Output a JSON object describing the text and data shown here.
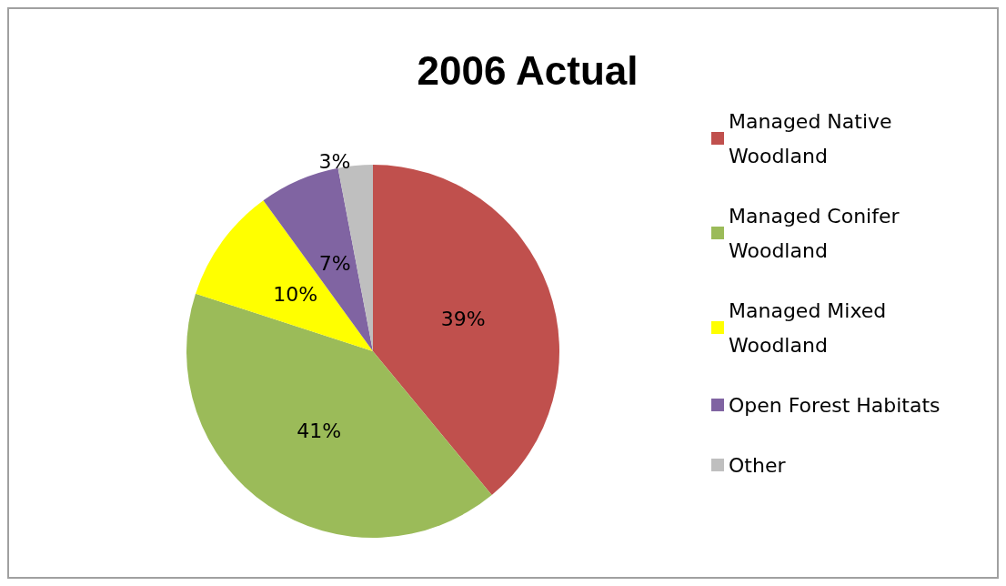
{
  "chart_data": {
    "type": "pie",
    "title": "2006 Actual",
    "categories": [
      "Managed Native Woodland",
      "Managed Conifer Woodland",
      "Managed Mixed Woodland",
      "Open Forest Habitats",
      "Other"
    ],
    "values": [
      39,
      41,
      10,
      7,
      3
    ],
    "colors": [
      "#c0504d",
      "#9bbb59",
      "#ffff00",
      "#8064a2",
      "#bfbfbf"
    ],
    "value_labels": [
      "39%",
      "41%",
      "10%",
      "7%",
      "3%"
    ],
    "legend": "right"
  }
}
